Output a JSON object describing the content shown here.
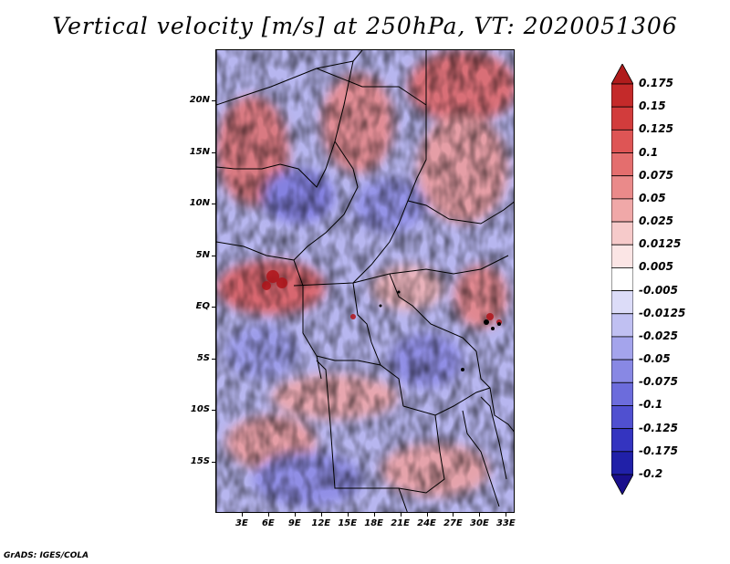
{
  "title": "Vertical velocity [m/s] at 250hPa, VT: 2020051306",
  "credit": "GrADS: IGES/COLA",
  "y_axis": {
    "labels": [
      "20N",
      "15N",
      "10N",
      "5N",
      "EQ",
      "5S",
      "10S",
      "15S"
    ],
    "values": [
      20,
      15,
      10,
      5,
      0,
      -5,
      -10,
      -15
    ],
    "range": [
      -20,
      25
    ]
  },
  "x_axis": {
    "labels": [
      "3E",
      "6E",
      "9E",
      "12E",
      "15E",
      "18E",
      "21E",
      "24E",
      "27E",
      "30E",
      "33E"
    ],
    "values": [
      3,
      6,
      9,
      12,
      15,
      18,
      21,
      24,
      27,
      30,
      33
    ],
    "range": [
      0,
      34
    ]
  },
  "colorbar": {
    "levels": [
      "0.175",
      "0.15",
      "0.125",
      "0.1",
      "0.075",
      "0.05",
      "0.025",
      "0.0125",
      "0.005",
      "-0.005",
      "-0.0125",
      "-0.025",
      "-0.05",
      "-0.075",
      "-0.1",
      "-0.125",
      "-0.175",
      "-0.2"
    ],
    "colors": [
      "#b01c1c",
      "#c42a2a",
      "#d23c3c",
      "#de5555",
      "#e46e6e",
      "#ea8a8a",
      "#f0a8a8",
      "#f6caca",
      "#fbe5e5",
      "#ffffff",
      "#dcdcf8",
      "#c0c0f2",
      "#a4a4ec",
      "#8888e4",
      "#6c6cdc",
      "#5050d0",
      "#3434c0",
      "#2020a8",
      "#1a0f8c"
    ]
  },
  "map": {
    "region": "Central Africa",
    "variable": "Vertical velocity",
    "level": "250hPa"
  }
}
